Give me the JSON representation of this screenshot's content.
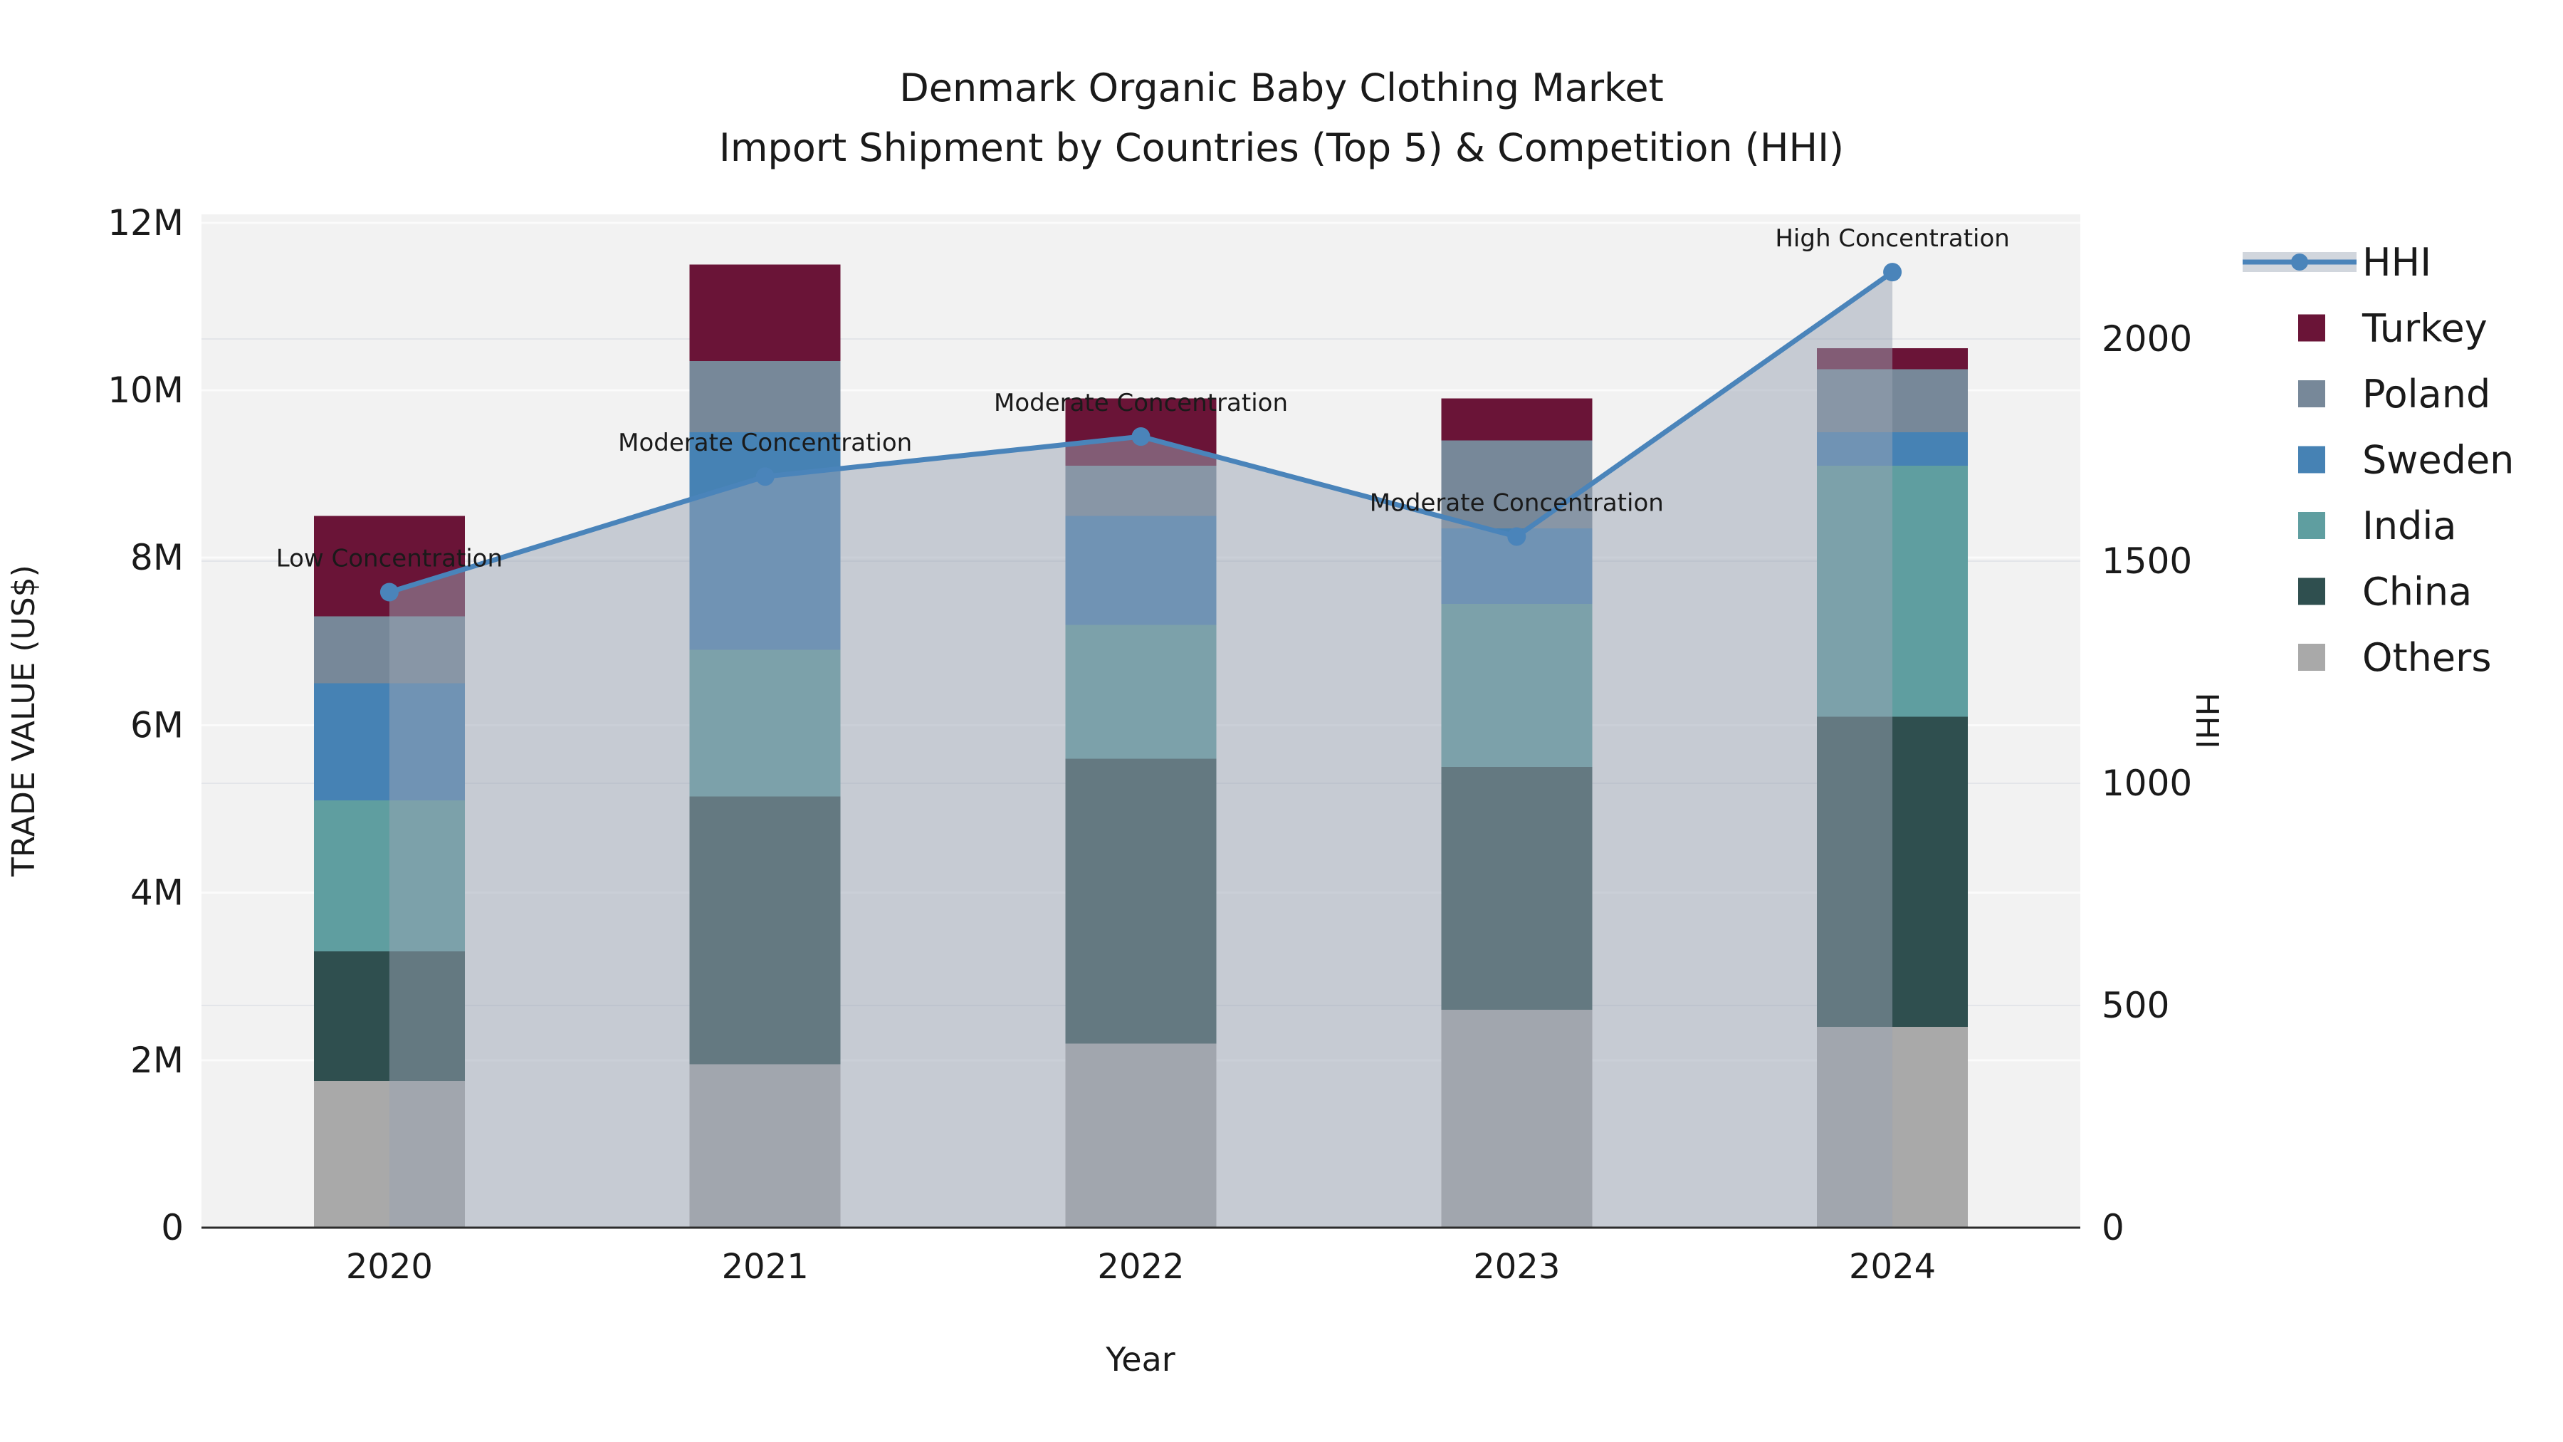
{
  "title": {
    "line1": "Denmark Organic Baby Clothing Market",
    "line2": "Import Shipment by Countries (Top 5) & Competition (HHI)"
  },
  "chart_data": {
    "type": "stacked-bar+line",
    "categories": [
      "2020",
      "2021",
      "2022",
      "2023",
      "2024"
    ],
    "unit": "US$ millions (left axis), HHI index (right axis)",
    "series": [
      {
        "name": "Others",
        "color": "#A9A9A9",
        "values": [
          1.75,
          1.95,
          2.2,
          2.6,
          2.4
        ]
      },
      {
        "name": "China",
        "color": "#2F4F4F",
        "values": [
          1.55,
          3.2,
          3.4,
          2.9,
          3.7
        ]
      },
      {
        "name": "India",
        "color": "#5F9EA0",
        "values": [
          1.8,
          1.75,
          1.6,
          1.95,
          3.0
        ]
      },
      {
        "name": "Sweden",
        "color": "#4682B4",
        "values": [
          1.4,
          2.6,
          1.3,
          0.9,
          0.4
        ]
      },
      {
        "name": "Poland",
        "color": "#778899",
        "values": [
          0.8,
          0.85,
          0.6,
          1.05,
          0.75
        ]
      },
      {
        "name": "Turkey",
        "color": "#6A1437",
        "values": [
          1.2,
          1.15,
          0.8,
          0.5,
          0.25
        ]
      }
    ],
    "bar_totals": [
      8.5,
      11.5,
      9.9,
      9.9,
      10.5
    ],
    "line_series": {
      "name": "HHI",
      "axis": "right",
      "color": "#4A84BA",
      "values": [
        1430,
        1690,
        1780,
        1555,
        2150
      ],
      "area_fill": "#9AA4B4",
      "area_opacity": 0.5
    },
    "annotations": [
      "Low Concentration",
      "Moderate Concentration",
      "Moderate Concentration",
      "Moderate Concentration",
      "High Concentration"
    ],
    "xlabel": "Year",
    "ylabel_left": "TRADE VALUE (US$)",
    "ylabel_right": "HHI",
    "y_left": {
      "ticks": [
        "0",
        "2M",
        "4M",
        "6M",
        "8M",
        "10M",
        "12M"
      ],
      "tick_values": [
        0,
        2,
        4,
        6,
        8,
        10,
        12
      ],
      "max": 12.1
    },
    "y_right": {
      "ticks": [
        "0",
        "500",
        "1000",
        "1500",
        "2000"
      ],
      "tick_values": [
        0,
        500,
        1000,
        1500,
        2000
      ],
      "max": 2280
    },
    "legend_position": "right",
    "grid": true,
    "legend": [
      {
        "label": "HHI",
        "type": "line",
        "color": "#4A84BA"
      },
      {
        "label": "Turkey",
        "type": "swatch",
        "color": "#6A1437"
      },
      {
        "label": "Poland",
        "type": "swatch",
        "color": "#778899"
      },
      {
        "label": "Sweden",
        "type": "swatch",
        "color": "#4682B4"
      },
      {
        "label": "India",
        "type": "swatch",
        "color": "#5F9EA0"
      },
      {
        "label": "China",
        "type": "swatch",
        "color": "#2F4F4F"
      },
      {
        "label": "Others",
        "type": "swatch",
        "color": "#A9A9A9"
      }
    ]
  },
  "colors": {
    "page_bg": "#FFFFFF",
    "plot_bg": "#F2F2F2",
    "grid_left_axis": "#FBFBFB",
    "grid_right_axis": "#E3E5E9",
    "axis_line": "#2B2B2B",
    "text": "#1A1A1A"
  }
}
